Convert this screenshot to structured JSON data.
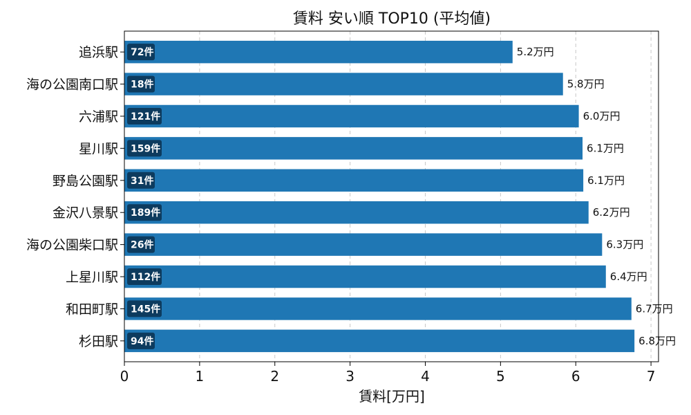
{
  "chart_data": {
    "type": "bar",
    "orientation": "horizontal",
    "title": "賃料 安い順 TOP10 (平均値)",
    "xlabel": "賃料[万円]",
    "ylabel": "",
    "xlim": [
      0,
      7.1
    ],
    "xticks": [
      "0",
      "1",
      "2",
      "3",
      "4",
      "5",
      "6",
      "7"
    ],
    "grid": "x-dashed",
    "bar_color": "#1f77b4",
    "badge_color": "#0d3b5e",
    "categories": [
      "追浜駅",
      "海の公園南口駅",
      "六浦駅",
      "星川駅",
      "野島公園駅",
      "金沢八景駅",
      "海の公園柴口駅",
      "上星川駅",
      "和田町駅",
      "杉田駅"
    ],
    "values": [
      5.16,
      5.83,
      6.04,
      6.09,
      6.1,
      6.17,
      6.35,
      6.4,
      6.74,
      6.78
    ],
    "value_labels": [
      "5.2万円",
      "5.8万円",
      "6.0万円",
      "6.1万円",
      "6.1万円",
      "6.2万円",
      "6.3万円",
      "6.4万円",
      "6.7万円",
      "6.8万円"
    ],
    "counts": [
      "72件",
      "18件",
      "121件",
      "159件",
      "31件",
      "189件",
      "26件",
      "112件",
      "145件",
      "94件"
    ]
  }
}
